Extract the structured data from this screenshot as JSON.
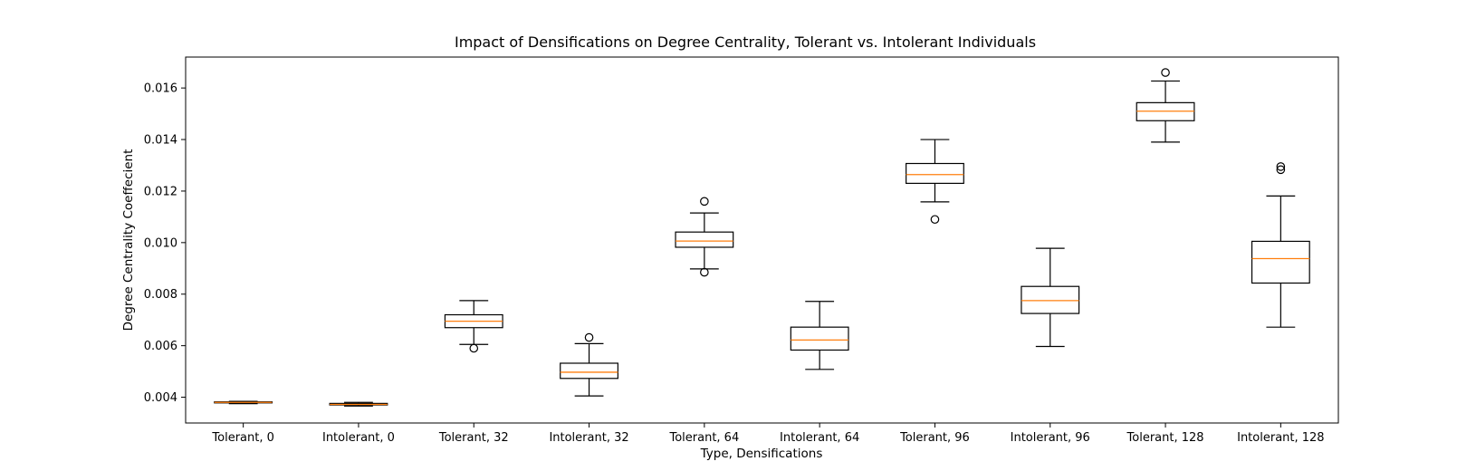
{
  "chart_data": {
    "type": "box",
    "title": "Impact of Densifications on Degree Centrality, Tolerant vs. Intolerant Individuals",
    "xlabel": "Type, Densifications",
    "ylabel": "Degree Centrality Coeffecient",
    "ylim": [
      0.003,
      0.0172
    ],
    "yticks": [
      "0.004",
      "0.006",
      "0.008",
      "0.010",
      "0.012",
      "0.014",
      "0.016"
    ],
    "ytick_values": [
      0.004,
      0.006,
      0.008,
      0.01,
      0.012,
      0.014,
      0.016
    ],
    "grid": false,
    "box_edge_color": "#000000",
    "median_color": "#ff7f0e",
    "categories": [
      "Tolerant, 0",
      "Intolerant, 0",
      "Tolerant, 32",
      "Intolerant, 32",
      "Tolerant, 64",
      "Intolerant, 64",
      "Tolerant, 96",
      "Intolerant, 96",
      "Tolerant, 128",
      "Intolerant, 128"
    ],
    "boxes": [
      {
        "whisker_low": 0.00375,
        "q1": 0.00378,
        "median": 0.0038,
        "q3": 0.00382,
        "whisker_high": 0.00384,
        "outliers": []
      },
      {
        "whisker_low": 0.00366,
        "q1": 0.0037,
        "median": 0.00372,
        "q3": 0.00376,
        "whisker_high": 0.0038,
        "outliers": []
      },
      {
        "whisker_low": 0.00605,
        "q1": 0.0067,
        "median": 0.00695,
        "q3": 0.0072,
        "whisker_high": 0.00775,
        "outliers": [
          0.0059
        ]
      },
      {
        "whisker_low": 0.00405,
        "q1": 0.00473,
        "median": 0.00497,
        "q3": 0.00532,
        "whisker_high": 0.00608,
        "outliers": [
          0.00632
        ]
      },
      {
        "whisker_low": 0.00898,
        "q1": 0.00982,
        "median": 0.01006,
        "q3": 0.01041,
        "whisker_high": 0.01115,
        "outliers": [
          0.00885,
          0.0116
        ]
      },
      {
        "whisker_low": 0.00508,
        "q1": 0.00583,
        "median": 0.00622,
        "q3": 0.00672,
        "whisker_high": 0.00772,
        "outliers": []
      },
      {
        "whisker_low": 0.01158,
        "q1": 0.0123,
        "median": 0.01264,
        "q3": 0.01307,
        "whisker_high": 0.014,
        "outliers": [
          0.0109
        ]
      },
      {
        "whisker_low": 0.00597,
        "q1": 0.00725,
        "median": 0.00775,
        "q3": 0.0083,
        "whisker_high": 0.00978,
        "outliers": []
      },
      {
        "whisker_low": 0.0139,
        "q1": 0.01473,
        "median": 0.0151,
        "q3": 0.01543,
        "whisker_high": 0.01627,
        "outliers": [
          0.0166
        ]
      },
      {
        "whisker_low": 0.00672,
        "q1": 0.00843,
        "median": 0.00938,
        "q3": 0.01005,
        "whisker_high": 0.01181,
        "outliers": [
          0.01283,
          0.01295
        ]
      }
    ]
  }
}
